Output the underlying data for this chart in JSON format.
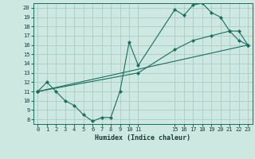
{
  "xlabel": "Humidex (Indice chaleur)",
  "xlim": [
    -0.5,
    23.5
  ],
  "ylim": [
    7.5,
    20.5
  ],
  "xticks": [
    0,
    1,
    2,
    3,
    4,
    5,
    6,
    7,
    8,
    9,
    10,
    11,
    15,
    16,
    17,
    18,
    19,
    20,
    21,
    22,
    23
  ],
  "xtick_labels": [
    "0",
    "1",
    "2",
    "3",
    "4",
    "5",
    "6",
    "7",
    "8",
    "9",
    "10",
    "11",
    "15",
    "16",
    "17",
    "18",
    "19",
    "20",
    "21",
    "22",
    "23"
  ],
  "yticks": [
    8,
    9,
    10,
    11,
    12,
    13,
    14,
    15,
    16,
    17,
    18,
    19,
    20
  ],
  "bg_color": "#cce8e0",
  "grid_color": "#aaccc4",
  "line_color": "#1a6e5e",
  "series": [
    {
      "x": [
        0,
        1,
        2,
        3,
        4,
        5,
        6,
        7,
        8,
        9,
        10,
        11,
        15,
        16,
        17,
        18,
        19,
        20,
        21,
        22,
        23
      ],
      "y": [
        11,
        12,
        11,
        10,
        9.5,
        8.5,
        7.8,
        8.2,
        8.2,
        11,
        16.3,
        13.8,
        19.8,
        19.2,
        20.3,
        20.5,
        19.5,
        19,
        17.5,
        16.5,
        16
      ]
    },
    {
      "x": [
        0,
        23
      ],
      "y": [
        11,
        16
      ]
    },
    {
      "x": [
        0,
        11,
        15,
        17,
        19,
        21,
        22,
        23
      ],
      "y": [
        11,
        13,
        15.5,
        16.5,
        17,
        17.5,
        17.5,
        16
      ]
    }
  ]
}
